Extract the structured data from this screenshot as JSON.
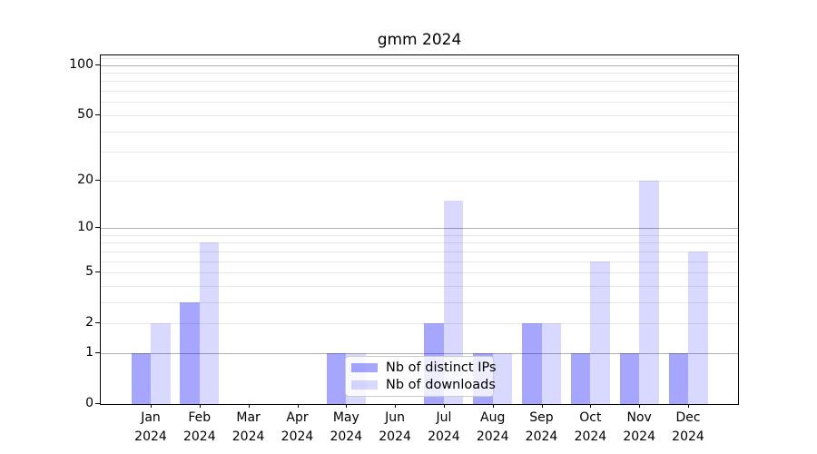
{
  "figure": {
    "background": "#ffffff",
    "text_color": "#000000",
    "spine_color": "#000000"
  },
  "chart_data": {
    "type": "bar",
    "title": "gmm 2024",
    "categories": [
      "Jan",
      "Feb",
      "Mar",
      "Apr",
      "May",
      "Jun",
      "Jul",
      "Aug",
      "Sep",
      "Oct",
      "Nov",
      "Dec"
    ],
    "category_year": "2024",
    "x_tick_labels": [
      "Jan 2024",
      "Feb 2024",
      "Mar 2024",
      "Apr 2024",
      "May 2024",
      "Jun 2024",
      "Jul 2024",
      "Aug 2024",
      "Sep 2024",
      "Oct 2024",
      "Nov 2024",
      "Dec 2024"
    ],
    "series": [
      {
        "name": "Nb of distinct IPs",
        "color": "#0000ff59",
        "values": [
          1,
          3,
          0,
          0,
          1,
          0,
          2,
          1,
          2,
          1,
          1,
          1
        ]
      },
      {
        "name": "Nb of downloads",
        "color": "#0000ff26",
        "values": [
          2,
          8,
          0,
          0,
          1,
          0,
          15,
          1,
          2,
          6,
          20,
          7
        ]
      }
    ],
    "xlabel": "",
    "ylabel": "",
    "yscale": "log1p",
    "ylim": [
      0,
      114
    ],
    "yticks": [
      0,
      1,
      2,
      5,
      10,
      20,
      50,
      100
    ],
    "grid": {
      "major_values": [
        1,
        10,
        100
      ],
      "minor_values": [
        2,
        3,
        4,
        5,
        6,
        7,
        8,
        9,
        20,
        30,
        40,
        50,
        60,
        70,
        80,
        90,
        110
      ],
      "major_color": "#b0b0b0",
      "minor_color": "#e8e8e8"
    },
    "legend": {
      "position": "lower center",
      "border_color": "#cccccc",
      "background": "rgba(255,255,255,0.8)"
    }
  }
}
